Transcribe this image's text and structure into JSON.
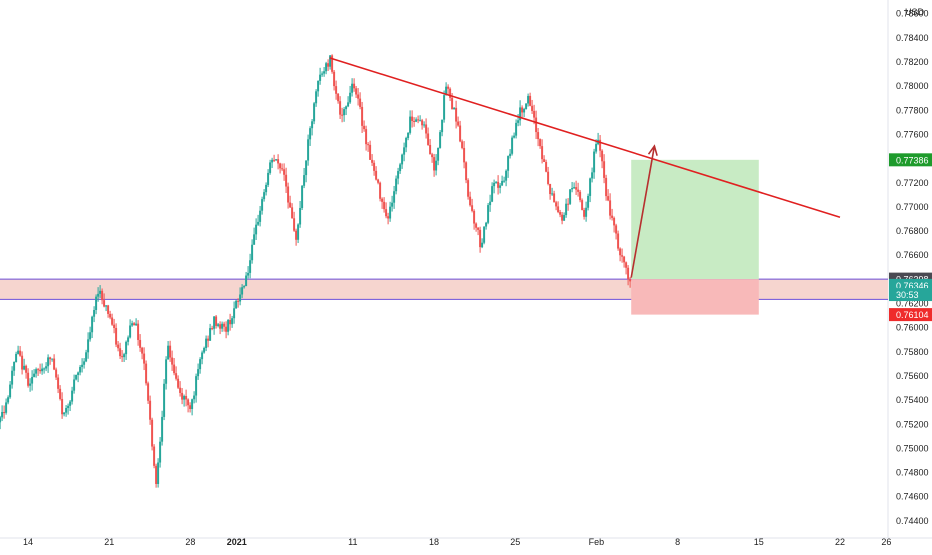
{
  "chart_data": {
    "type": "candlestick",
    "title": "",
    "currency_label": "USD",
    "y_axis": {
      "ticks": [
        "0.74400",
        "0.74600",
        "0.74800",
        "0.75000",
        "0.75200",
        "0.75400",
        "0.75600",
        "0.75800",
        "0.76000",
        "0.76200",
        "0.76400",
        "0.76600",
        "0.76800",
        "0.77000",
        "0.77200",
        "0.77400",
        "0.77600",
        "0.77800",
        "0.78000",
        "0.78200",
        "0.78400",
        "0.78600"
      ],
      "range": [
        0.7432,
        0.7866
      ]
    },
    "x_axis": {
      "labels": [
        {
          "label": "14",
          "date": "2020-12-14"
        },
        {
          "label": "21",
          "date": "2020-12-21"
        },
        {
          "label": "28",
          "date": "2020-12-28"
        },
        {
          "label": "2021",
          "date": "2021-01-01",
          "bold": true
        },
        {
          "label": "11",
          "date": "2021-01-11"
        },
        {
          "label": "18",
          "date": "2021-01-18"
        },
        {
          "label": "25",
          "date": "2021-01-25"
        },
        {
          "label": "Feb",
          "date": "2021-02-01"
        },
        {
          "label": "8",
          "date": "2021-02-08"
        },
        {
          "label": "15",
          "date": "2021-02-15"
        },
        {
          "label": "22",
          "date": "2021-02-22"
        },
        {
          "label": "26",
          "date": "2021-02-26"
        }
      ]
    },
    "price_path": [
      [
        "2020-12-10",
        0.7488
      ],
      [
        "2020-12-12",
        0.7535
      ],
      [
        "2020-12-13",
        0.758
      ],
      [
        "2020-12-14",
        0.7555
      ],
      [
        "2020-12-16",
        0.7575
      ],
      [
        "2020-12-17",
        0.7525
      ],
      [
        "2020-12-18",
        0.7555
      ],
      [
        "2020-12-19",
        0.758
      ],
      [
        "2020-12-20",
        0.7632
      ],
      [
        "2020-12-21",
        0.761
      ],
      [
        "2020-12-22",
        0.757
      ],
      [
        "2020-12-23",
        0.761
      ],
      [
        "2020-12-24",
        0.757
      ],
      [
        "2020-12-25",
        0.747
      ],
      [
        "2020-12-26",
        0.7585
      ],
      [
        "2020-12-27",
        0.7545
      ],
      [
        "2020-12-28",
        0.7535
      ],
      [
        "2020-12-29",
        0.758
      ],
      [
        "2020-12-30",
        0.7605
      ],
      [
        "2020-12-31",
        0.7598
      ],
      [
        "2021-01-01",
        0.762
      ],
      [
        "2021-01-02",
        0.765
      ],
      [
        "2021-01-03",
        0.77
      ],
      [
        "2021-01-04",
        0.774
      ],
      [
        "2021-01-05",
        0.773
      ],
      [
        "2021-01-06",
        0.767
      ],
      [
        "2021-01-07",
        0.7745
      ],
      [
        "2021-01-08",
        0.7805
      ],
      [
        "2021-01-09",
        0.7822
      ],
      [
        "2021-01-10",
        0.777
      ],
      [
        "2021-01-11",
        0.7805
      ],
      [
        "2021-01-12",
        0.776
      ],
      [
        "2021-01-13",
        0.772
      ],
      [
        "2021-01-14",
        0.769
      ],
      [
        "2021-01-15",
        0.7735
      ],
      [
        "2021-01-16",
        0.7775
      ],
      [
        "2021-01-17",
        0.777
      ],
      [
        "2021-01-18",
        0.773
      ],
      [
        "2021-01-19",
        0.78
      ],
      [
        "2021-01-20",
        0.777
      ],
      [
        "2021-01-21",
        0.7705
      ],
      [
        "2021-01-22",
        0.7668
      ],
      [
        "2021-01-23",
        0.7715
      ],
      [
        "2021-01-24",
        0.772
      ],
      [
        "2021-01-25",
        0.777
      ],
      [
        "2021-01-26",
        0.779
      ],
      [
        "2021-01-27",
        0.7755
      ],
      [
        "2021-01-28",
        0.771
      ],
      [
        "2021-01-29",
        0.769
      ],
      [
        "2021-01-30",
        0.772
      ],
      [
        "2021-01-31",
        0.769
      ],
      [
        "2021-02-01",
        0.776
      ],
      [
        "2021-02-02",
        0.77
      ],
      [
        "2021-02-03",
        0.766
      ],
      [
        "2021-02-04",
        0.7635
      ]
    ],
    "annotations": {
      "trendline": {
        "start": [
          "2021-01-09",
          0.7823
        ],
        "end": [
          "2021-02-22",
          0.7691
        ],
        "color": "#e02020"
      },
      "support_zone": {
        "top": 0.76398,
        "bottom": 0.7623,
        "fill": "#f6d5cf",
        "border_color": "#6b4ed8"
      },
      "long_position": {
        "start_date": "2021-02-04",
        "end_date": "2021-02-15",
        "entry": 0.76398,
        "target": 0.77386,
        "stop": 0.76104,
        "profit_fill": "#c8ebc4",
        "loss_fill": "#f8b9b9"
      },
      "arrow": {
        "from": [
          "2021-02-04",
          0.7641
        ],
        "to": [
          "2021-02-06",
          0.775
        ],
        "color": "#b72f2f"
      }
    },
    "price_labels": [
      {
        "text": "0.77386",
        "value": 0.77386,
        "color": "#1e9b2c"
      },
      {
        "text": "0.76398",
        "value": 0.76398,
        "color": "#4a4a52"
      },
      {
        "text": "0.76346",
        "value": 0.76346,
        "color": "#26a69a"
      },
      {
        "text": "30:53",
        "value": 0.7627,
        "color": "#26a69a"
      },
      {
        "text": "0.76104",
        "value": 0.76104,
        "color": "#ef2b2b"
      }
    ],
    "colors": {
      "up": "#26a69a",
      "down": "#ef5350",
      "axis_text": "#222222",
      "separator": "#e0e3eb"
    }
  }
}
